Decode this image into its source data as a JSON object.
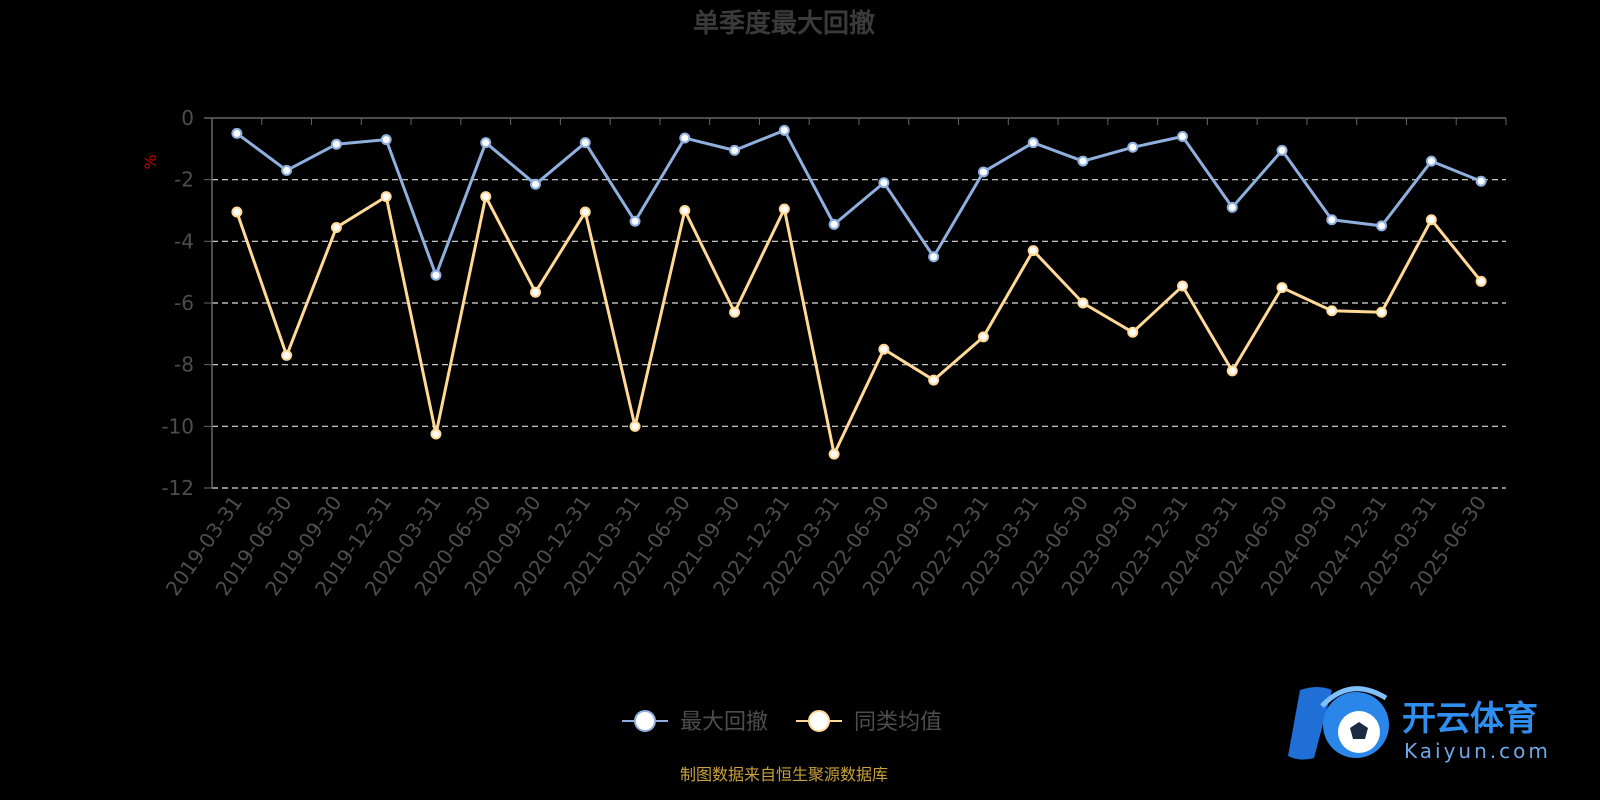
{
  "source_note": "制图数据来自恒生聚源数据库",
  "watermark": {
    "main": "开云体育",
    "sub": "Kaiyun.com"
  },
  "colors": {
    "background": "#000000",
    "axis": "#666666",
    "grid": "#dddddd",
    "series1": "#8fb0de",
    "series2": "#ffd995"
  },
  "chart_data": {
    "type": "line",
    "title": "单季度最大回撤",
    "ylabel": "%",
    "xlabel": "",
    "ylim": [
      -12,
      0
    ],
    "yticks": [
      "0",
      "-2",
      "-4",
      "-6",
      "-8",
      "-10",
      "-12"
    ],
    "grid": true,
    "legend_position": "bottom-center",
    "categories": [
      "2019-03-31",
      "2019-06-30",
      "2019-09-30",
      "2019-12-31",
      "2020-03-31",
      "2020-06-30",
      "2020-09-30",
      "2020-12-31",
      "2021-03-31",
      "2021-06-30",
      "2021-09-30",
      "2021-12-31",
      "2022-03-31",
      "2022-06-30",
      "2022-09-30",
      "2022-12-31",
      "2023-03-31",
      "2023-06-30",
      "2023-09-30",
      "2023-12-31",
      "2024-03-31",
      "2024-06-30",
      "2024-09-30",
      "2024-12-31",
      "2025-03-31",
      "2025-06-30"
    ],
    "series": [
      {
        "name": "最大回撤",
        "color": "#8fb0de",
        "values": [
          -0.5,
          -1.7,
          -0.85,
          -0.7,
          -5.1,
          -0.8,
          -2.15,
          -0.8,
          -3.35,
          -0.65,
          -1.05,
          -0.4,
          -3.45,
          -2.1,
          -4.5,
          -1.75,
          -0.8,
          -1.4,
          -0.95,
          -0.6,
          -2.9,
          -1.05,
          -3.3,
          -3.5,
          -1.4,
          -2.05
        ]
      },
      {
        "name": "同类均值",
        "color": "#ffd995",
        "values": [
          -3.05,
          -7.7,
          -3.55,
          -2.55,
          -10.25,
          -2.55,
          -5.65,
          -3.05,
          -10.0,
          -3.0,
          -6.3,
          -2.95,
          -10.9,
          -7.5,
          -8.5,
          -7.1,
          -4.3,
          -6.0,
          -6.95,
          -5.45,
          -8.2,
          -5.5,
          -6.25,
          -6.3,
          -3.3,
          -5.3
        ]
      }
    ]
  }
}
